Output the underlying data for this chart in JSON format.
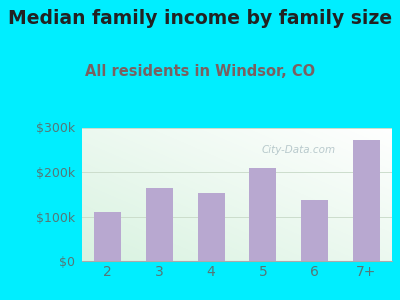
{
  "title": "Median family income by family size",
  "subtitle": "All residents in Windsor, CO",
  "categories": [
    "2",
    "3",
    "4",
    "5",
    "6",
    "7+"
  ],
  "values": [
    110000,
    165000,
    152000,
    210000,
    138000,
    272000
  ],
  "bar_color": "#b8a8d0",
  "title_fontsize": 13.5,
  "subtitle_fontsize": 10.5,
  "title_color": "#222222",
  "subtitle_color": "#7a6060",
  "tick_color": "#557777",
  "background_outer": "#00eeff",
  "ylim": [
    0,
    300000
  ],
  "yticks": [
    0,
    100000,
    200000,
    300000
  ],
  "ytick_labels": [
    "$0",
    "$100k",
    "$200k",
    "$300k"
  ],
  "grid_color": "#ccddcc",
  "watermark": "City-Data.com"
}
